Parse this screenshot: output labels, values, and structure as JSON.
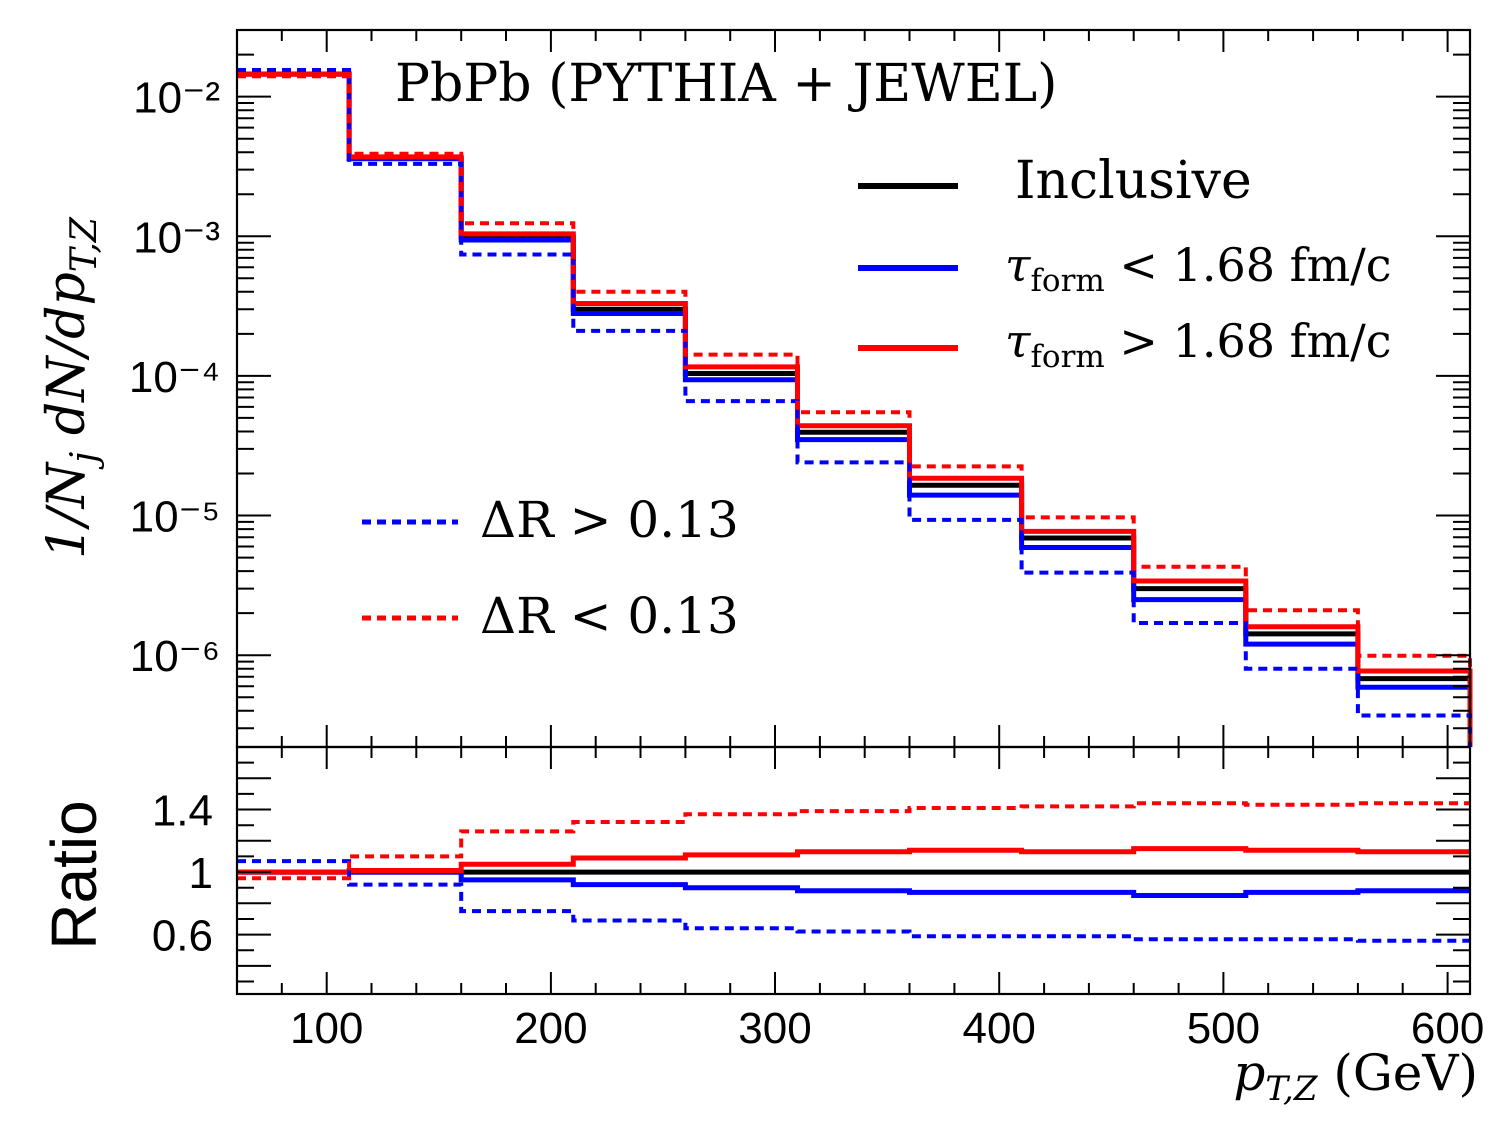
{
  "chart_data": [
    {
      "type": "line",
      "panel": "main",
      "title": "PbPb (PYTHIA + JEWEL)",
      "ylabel": "1/N_j dN/dp_T,Z",
      "yscale": "log",
      "xlim": [
        60,
        610
      ],
      "ylim": [
        2.2e-07,
        0.03
      ],
      "bin_edges": [
        60,
        110,
        160,
        210,
        260,
        310,
        360,
        410,
        460,
        510,
        560,
        610
      ],
      "ytick_labels": [
        "10⁻²",
        "10⁻³",
        "10⁻⁴",
        "10⁻⁵",
        "10⁻⁶"
      ],
      "ytick_values": [
        0.01,
        0.001,
        0.0001,
        1e-05,
        1e-06
      ],
      "series": [
        {
          "name": "Inclusive",
          "color": "#000000",
          "style": "solid",
          "values": [
            0.0145,
            0.0036,
            0.00099,
            0.0003,
            0.000104,
            3.95e-05,
            1.65e-05,
            6.9e-06,
            3e-06,
            1.42e-06,
            6.8e-07
          ]
        },
        {
          "name": "τ_form < 1.68 fm/c",
          "color": "#0000ff",
          "style": "solid",
          "values": [
            0.0145,
            0.0036,
            0.00094,
            0.00028,
            9.4e-05,
            3.5e-05,
            1.4e-05,
            5.9e-06,
            2.5e-06,
            1.2e-06,
            5.9e-07
          ]
        },
        {
          "name": "τ_form > 1.68 fm/c",
          "color": "#ff0000",
          "style": "solid",
          "values": [
            0.0145,
            0.0037,
            0.00104,
            0.00033,
            0.000116,
            4.4e-05,
            1.85e-05,
            7.7e-06,
            3.4e-06,
            1.6e-06,
            7.7e-07
          ]
        },
        {
          "name": "ΔR > 0.13",
          "color": "#0000ff",
          "style": "dashed",
          "values": [
            0.0155,
            0.0033,
            0.00074,
            0.00021,
            6.6e-05,
            2.4e-05,
            9.3e-06,
            3.9e-06,
            1.7e-06,
            8e-07,
            3.7e-07
          ]
        },
        {
          "name": "ΔR < 0.13",
          "color": "#ff0000",
          "style": "dashed",
          "values": [
            0.014,
            0.0039,
            0.00124,
            0.0004,
            0.000142,
            5.5e-05,
            2.25e-05,
            9.7e-06,
            4.3e-06,
            2.1e-06,
            9.9e-07
          ]
        }
      ],
      "legend": [
        {
          "label": "Inclusive",
          "color": "#000000",
          "style": "solid"
        },
        {
          "label": "τ",
          "sub": "form",
          "rest": "< 1.68 fm/c",
          "color": "#0000ff",
          "style": "solid"
        },
        {
          "label": "τ",
          "sub": "form",
          "rest": "> 1.68 fm/c",
          "color": "#ff0000",
          "style": "solid"
        },
        {
          "label": "ΔR > 0.13",
          "color": "#0000ff",
          "style": "dashed"
        },
        {
          "label": "ΔR < 0.13",
          "color": "#ff0000",
          "style": "dashed"
        }
      ]
    },
    {
      "type": "line",
      "panel": "ratio",
      "ylabel": "Ratio",
      "xlabel": "p_T,Z (GeV)",
      "xlim": [
        60,
        610
      ],
      "ylim": [
        0.22,
        1.8
      ],
      "bin_edges": [
        60,
        110,
        160,
        210,
        260,
        310,
        360,
        410,
        460,
        510,
        560,
        610
      ],
      "xtick_labels": [
        "100",
        "200",
        "300",
        "400",
        "500",
        "600"
      ],
      "xtick_values": [
        100,
        200,
        300,
        400,
        500,
        600
      ],
      "ytick_labels": [
        "1.4",
        "1",
        "0.6"
      ],
      "ytick_values": [
        1.4,
        1,
        0.6
      ],
      "series": [
        {
          "name": "Inclusive",
          "color": "#000000",
          "style": "solid",
          "values": [
            1,
            1,
            1,
            1,
            1,
            1,
            1,
            1,
            1,
            1,
            1
          ]
        },
        {
          "name": "τ_form < 1.68 fm/c",
          "color": "#0000ff",
          "style": "solid",
          "values": [
            1.0,
            1.0,
            0.95,
            0.92,
            0.9,
            0.88,
            0.87,
            0.87,
            0.85,
            0.87,
            0.88
          ]
        },
        {
          "name": "τ_form > 1.68 fm/c",
          "color": "#ff0000",
          "style": "solid",
          "values": [
            1.0,
            1.01,
            1.05,
            1.09,
            1.11,
            1.13,
            1.14,
            1.13,
            1.15,
            1.14,
            1.13
          ]
        },
        {
          "name": "ΔR > 0.13",
          "color": "#0000ff",
          "style": "dashed",
          "values": [
            1.07,
            0.92,
            0.75,
            0.69,
            0.64,
            0.62,
            0.59,
            0.59,
            0.57,
            0.57,
            0.56
          ]
        },
        {
          "name": "ΔR < 0.13",
          "color": "#ff0000",
          "style": "dashed",
          "values": [
            0.96,
            1.1,
            1.26,
            1.32,
            1.37,
            1.39,
            1.41,
            1.42,
            1.44,
            1.43,
            1.44
          ]
        }
      ]
    }
  ]
}
